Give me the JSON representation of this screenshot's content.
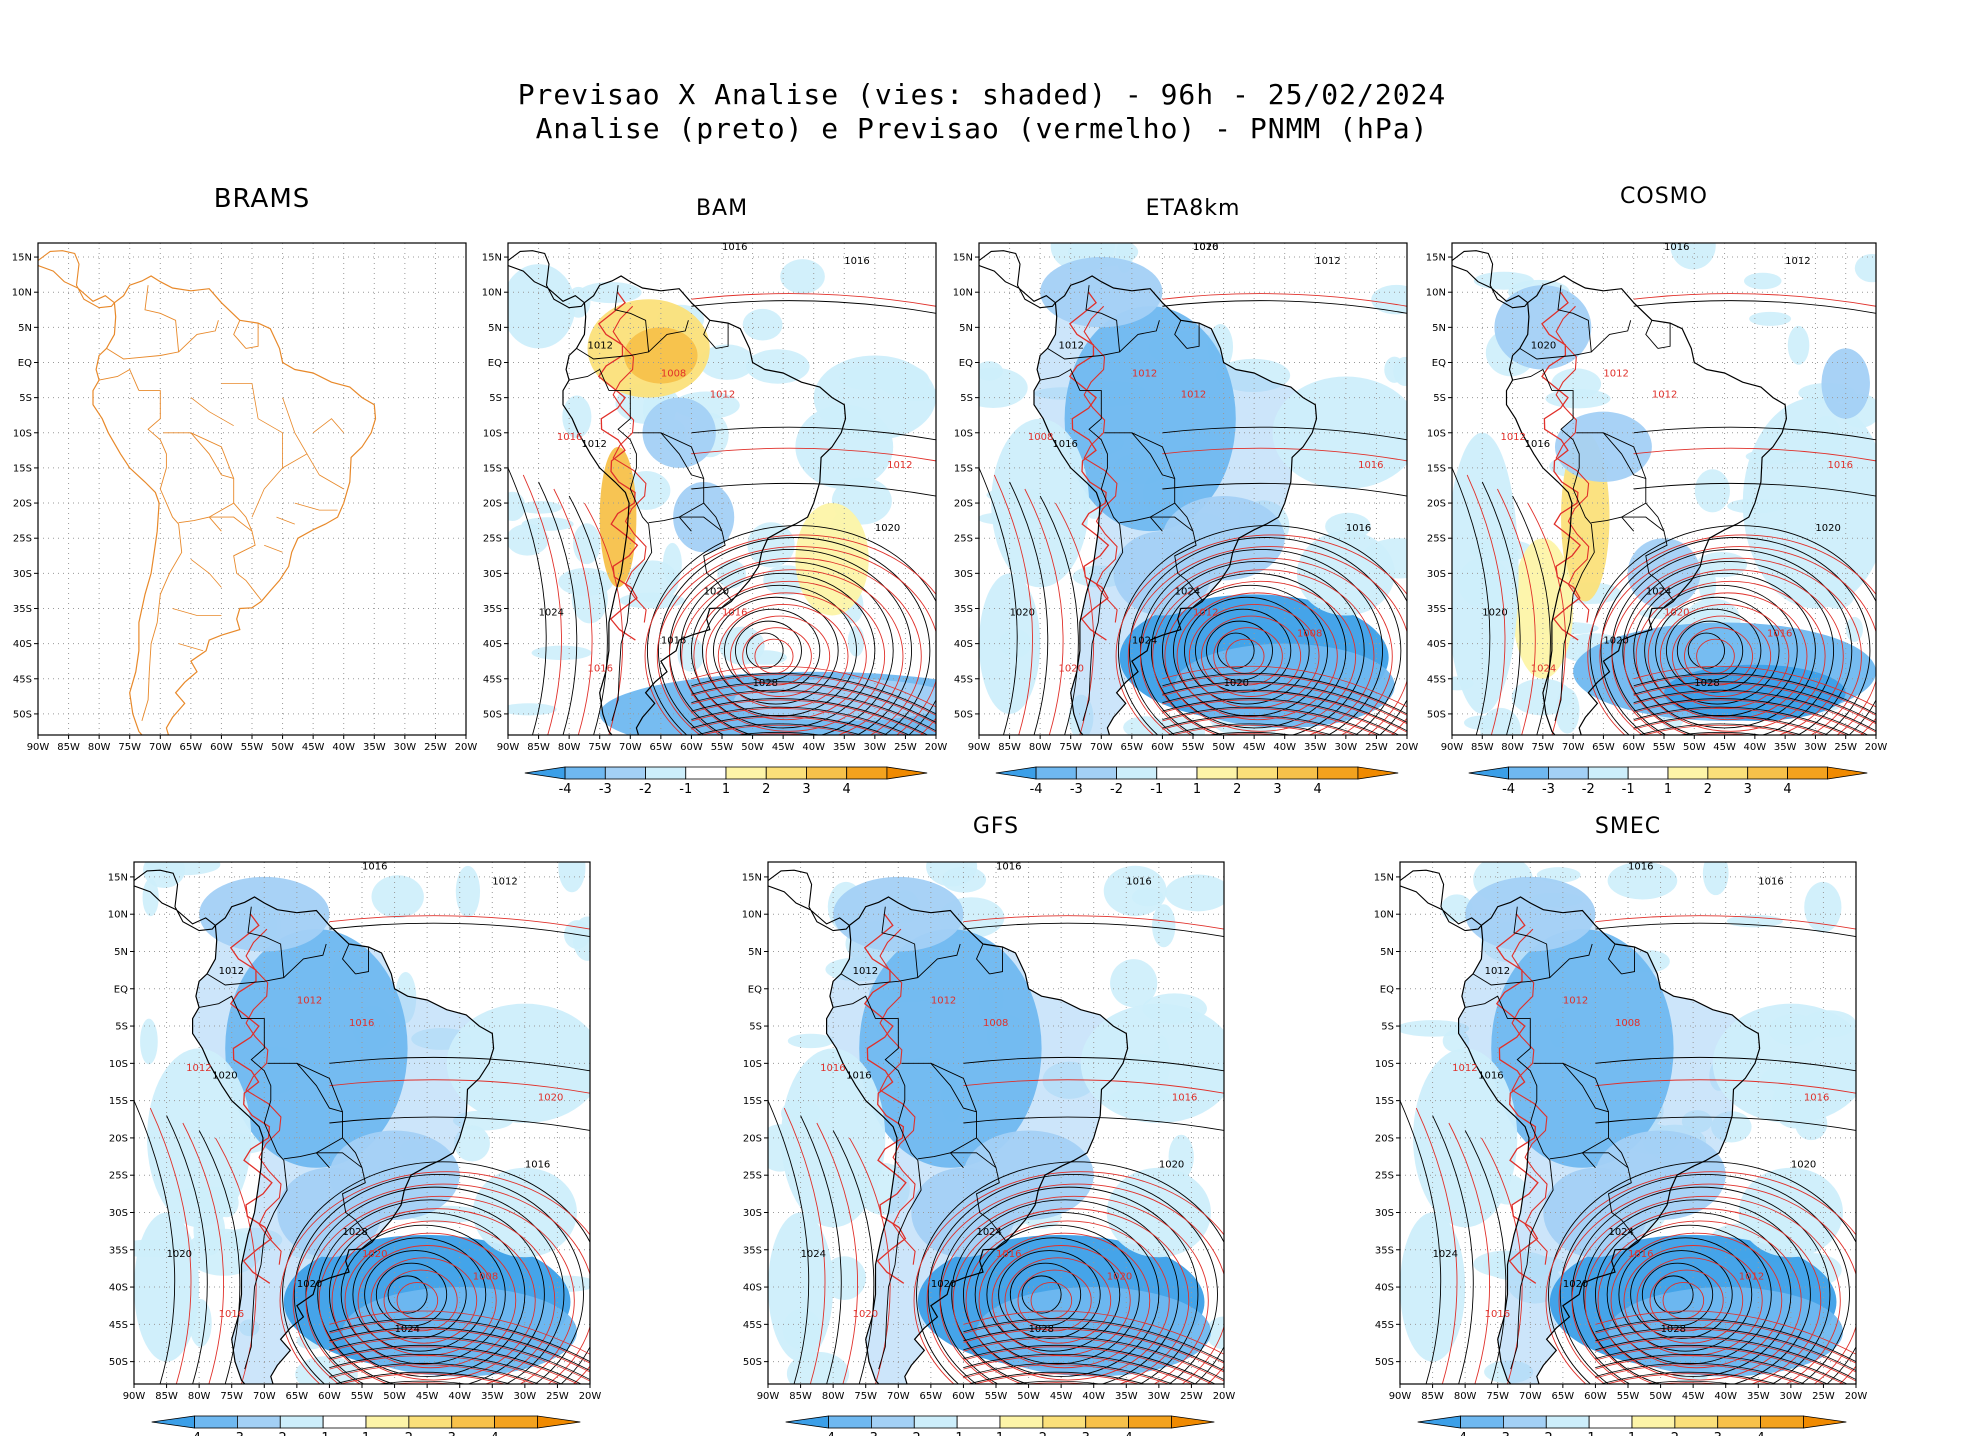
{
  "title": {
    "line1": "Previsao X Analise (vies: shaded) - 96h - 25/02/2024",
    "line2": "Analise (preto) e Previsao (vermelho) - PNMM (hPa)"
  },
  "axes": {
    "lat_labels": [
      "15N",
      "10N",
      "5N",
      "EQ",
      "5S",
      "10S",
      "15S",
      "20S",
      "25S",
      "30S",
      "35S",
      "40S",
      "45S",
      "50S"
    ],
    "lon_labels": [
      "90W",
      "85W",
      "80W",
      "75W",
      "70W",
      "65W",
      "60W",
      "55W",
      "50W",
      "45W",
      "40W",
      "35W",
      "30W",
      "25W",
      "20W"
    ]
  },
  "colorbar": {
    "labels": [
      "-4",
      "-3",
      "-2",
      "-1",
      "1",
      "2",
      "3",
      "4"
    ],
    "colors": [
      "#3b9fe8",
      "#6fb8f0",
      "#a3d0f5",
      "#cdeefb",
      "#ffffff",
      "#fdf4a8",
      "#fbe07a",
      "#f7c14a",
      "#f3a21e",
      "#f08a00"
    ]
  },
  "colors": {
    "coast": "#e8892a",
    "analysis": "#000000",
    "forecast": "#e0302a"
  },
  "panels": [
    {
      "id": "brams",
      "title": "BRAMS",
      "colorbar": false,
      "isobars": false,
      "bias": "none",
      "analysis_labels": [],
      "forecast_labels": []
    },
    {
      "id": "bam",
      "title": "BAM",
      "colorbar": true,
      "isobars": true,
      "bias": "warm",
      "analysis_labels": [
        "1016",
        "1016",
        "1012",
        "1012",
        "1020",
        "1024",
        "1028",
        "1020",
        "1016"
      ],
      "forecast_labels": [
        "1016",
        "1008",
        "1012",
        "1016",
        "1012",
        "1016",
        "1016"
      ]
    },
    {
      "id": "eta8km",
      "title": "ETA8km",
      "colorbar": true,
      "isobars": true,
      "bias": "cold",
      "analysis_labels": [
        "1016",
        "1012",
        "1012",
        "1016",
        "1016",
        "1020",
        "1020",
        "1024",
        "1024",
        "1020"
      ],
      "forecast_labels": [
        "1016",
        "1012",
        "1012",
        "1008",
        "1016",
        "1012",
        "1020",
        "1008"
      ]
    },
    {
      "id": "cosmo",
      "title": "COSMO",
      "colorbar": true,
      "isobars": true,
      "bias": "mixed",
      "analysis_labels": [
        "1016",
        "1012",
        "1020",
        "1016",
        "1020",
        "1020",
        "1028",
        "1024",
        "1020"
      ],
      "forecast_labels": [
        "1016",
        "1012",
        "1012",
        "1012",
        "1016",
        "1020",
        "1024",
        "1016"
      ]
    },
    {
      "id": "unnamed",
      "title": "",
      "colorbar": true,
      "isobars": true,
      "bias": "cold",
      "analysis_labels": [
        "1016",
        "1012",
        "1012",
        "1020",
        "1016",
        "1020",
        "1024",
        "1028",
        "1020"
      ],
      "forecast_labels": [
        "1016",
        "1012",
        "1016",
        "1012",
        "1020",
        "1020",
        "1016",
        "1008"
      ]
    },
    {
      "id": "gfs",
      "title": "GFS",
      "colorbar": true,
      "isobars": true,
      "bias": "cold",
      "analysis_labels": [
        "1016",
        "1016",
        "1012",
        "1016",
        "1020",
        "1024",
        "1028",
        "1024",
        "1020"
      ],
      "forecast_labels": [
        "1016",
        "1012",
        "1008",
        "1016",
        "1016",
        "1016",
        "1020",
        "1020"
      ]
    },
    {
      "id": "smec",
      "title": "SMEC",
      "colorbar": true,
      "isobars": true,
      "bias": "cold",
      "analysis_labels": [
        "1016",
        "1016",
        "1012",
        "1016",
        "1020",
        "1024",
        "1028",
        "1024",
        "1020"
      ],
      "forecast_labels": [
        "1016",
        "1012",
        "1008",
        "1012",
        "1016",
        "1016",
        "1016",
        "1012"
      ]
    }
  ]
}
